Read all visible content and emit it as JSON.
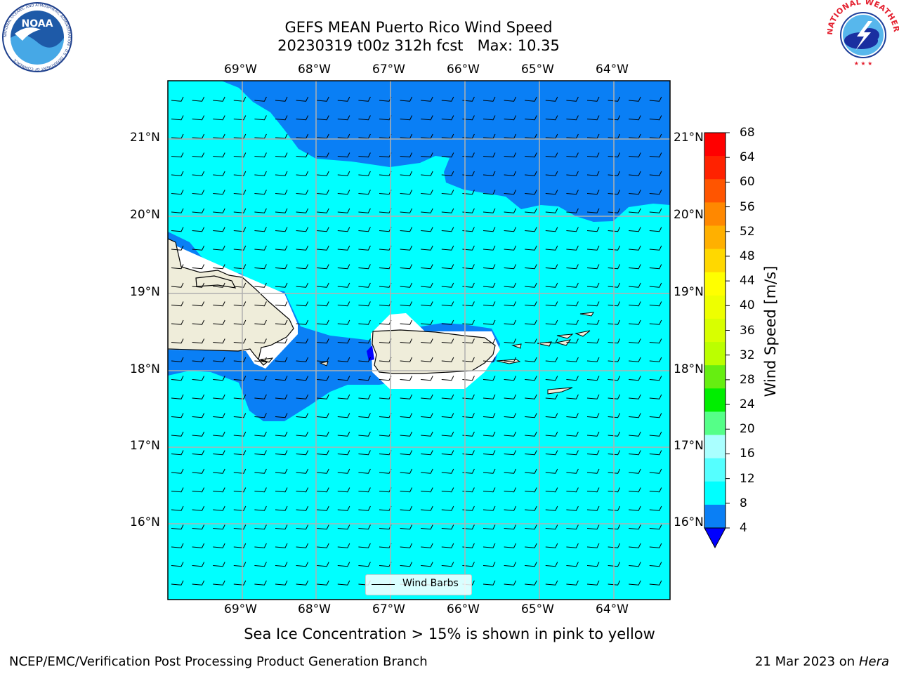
{
  "title": {
    "line1": "GEFS MEAN Puerto Rico Wind Speed",
    "line2": "20230319 t00z 312h fcst   Max: 10.35"
  },
  "map": {
    "lon_labels": [
      "69°W",
      "68°W",
      "67°W",
      "66°W",
      "65°W",
      "64°W"
    ],
    "lat_labels": [
      "21°N",
      "20°N",
      "19°N",
      "18°N",
      "17°N",
      "16°N"
    ],
    "legend_label": "Wind Barbs",
    "colors": {
      "land": "#efedda",
      "wind_4_8": "#0a7ff5",
      "wind_8_12": "#00ffff",
      "grid": "#b0b0b0"
    }
  },
  "colorbar": {
    "label": "Wind Speed [m/s]",
    "ticks": [
      "68",
      "64",
      "60",
      "56",
      "52",
      "48",
      "44",
      "40",
      "36",
      "32",
      "28",
      "24",
      "20",
      "16",
      "12",
      "8",
      "4"
    ],
    "colors": [
      "#ff0000",
      "#ff2200",
      "#ff5500",
      "#ff8800",
      "#ffb000",
      "#ffd800",
      "#ffff00",
      "#eeff00",
      "#d8ff00",
      "#bbff00",
      "#66ee11",
      "#00ee00",
      "#55ff88",
      "#aaffff",
      "#55ffff",
      "#00ffff",
      "#0a7ff5"
    ],
    "under_color": "#0000ff"
  },
  "note": "Sea Ice Concentration > 15% is shown in pink to yellow",
  "footer": {
    "left": "NCEP/EMC/Verification Post Processing Product Generation Branch",
    "date": "21 Mar 2023 on",
    "machine": "Hera"
  },
  "logos": {
    "noaa_text": "NOAA",
    "noaa_ring_text": "NATIONAL OCEANIC AND ATMOSPHERIC ADMINISTRATION · U.S. DEPARTMENT OF COMMERCE",
    "nws_ring_text": "NATIONAL WEATHER SERVICE"
  }
}
